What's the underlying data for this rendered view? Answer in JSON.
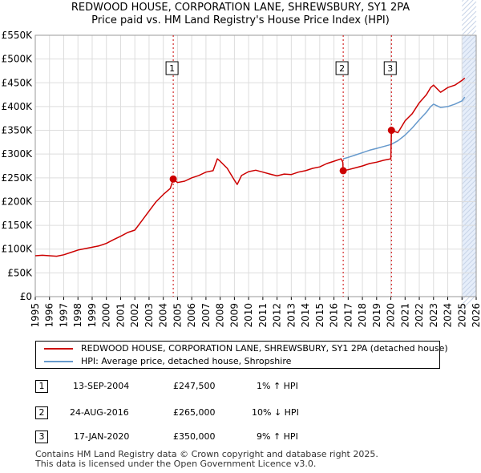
{
  "title_line1": "REDWOOD HOUSE, CORPORATION LANE, SHREWSBURY, SY1 2PA",
  "title_line2": "Price paid vs. HM Land Registry's House Price Index (HPI)",
  "colors": {
    "property": "#cc0000",
    "hpi": "#6699cc",
    "grid": "#dddddd",
    "band": "#e6eefa",
    "marker_line": "#cc0000"
  },
  "chart_data": {
    "type": "line",
    "title": "Price paid vs. HM Land Registry's House Price Index (HPI)",
    "xlim": [
      1995,
      2026
    ],
    "ylim": [
      0,
      550000
    ],
    "x_ticks": [
      1995,
      1996,
      1997,
      1998,
      1999,
      2000,
      2001,
      2002,
      2003,
      2004,
      2005,
      2006,
      2007,
      2008,
      2009,
      2010,
      2011,
      2012,
      2013,
      2014,
      2015,
      2016,
      2017,
      2018,
      2019,
      2020,
      2021,
      2022,
      2023,
      2024,
      2025,
      2026
    ],
    "y_ticks": [
      {
        "value": 0,
        "label": "£0"
      },
      {
        "value": 50000,
        "label": "£50K"
      },
      {
        "value": 100000,
        "label": "£100K"
      },
      {
        "value": 150000,
        "label": "£150K"
      },
      {
        "value": 200000,
        "label": "£200K"
      },
      {
        "value": 250000,
        "label": "£250K"
      },
      {
        "value": 300000,
        "label": "£300K"
      },
      {
        "value": 350000,
        "label": "£350K"
      },
      {
        "value": 400000,
        "label": "£400K"
      },
      {
        "value": 450000,
        "label": "£450K"
      },
      {
        "value": 500000,
        "label": "£500K"
      },
      {
        "value": 550000,
        "label": "£550K"
      }
    ],
    "future_band_start": 2025.0,
    "series": [
      {
        "name": "REDWOOD HOUSE, CORPORATION LANE, SHREWSBURY, SY1 2PA (detached house)",
        "color": "#cc0000",
        "points": [
          [
            1995.0,
            86000
          ],
          [
            1995.5,
            87000
          ],
          [
            1996.0,
            86000
          ],
          [
            1996.5,
            85000
          ],
          [
            1997.0,
            88000
          ],
          [
            1997.5,
            93000
          ],
          [
            1998.0,
            98000
          ],
          [
            1998.5,
            101000
          ],
          [
            1999.0,
            104000
          ],
          [
            1999.5,
            107000
          ],
          [
            2000.0,
            112000
          ],
          [
            2000.5,
            120000
          ],
          [
            2001.0,
            127000
          ],
          [
            2001.5,
            135000
          ],
          [
            2002.0,
            140000
          ],
          [
            2002.5,
            160000
          ],
          [
            2003.0,
            180000
          ],
          [
            2003.5,
            200000
          ],
          [
            2004.0,
            215000
          ],
          [
            2004.5,
            228000
          ],
          [
            2004.7,
            247500
          ],
          [
            2005.0,
            240000
          ],
          [
            2005.5,
            243000
          ],
          [
            2006.0,
            250000
          ],
          [
            2006.5,
            255000
          ],
          [
            2007.0,
            262000
          ],
          [
            2007.5,
            265000
          ],
          [
            2007.8,
            290000
          ],
          [
            2008.0,
            285000
          ],
          [
            2008.5,
            270000
          ],
          [
            2009.0,
            245000
          ],
          [
            2009.2,
            236000
          ],
          [
            2009.5,
            255000
          ],
          [
            2010.0,
            263000
          ],
          [
            2010.5,
            266000
          ],
          [
            2011.0,
            262000
          ],
          [
            2011.5,
            258000
          ],
          [
            2012.0,
            254000
          ],
          [
            2012.5,
            258000
          ],
          [
            2013.0,
            257000
          ],
          [
            2013.5,
            262000
          ],
          [
            2014.0,
            265000
          ],
          [
            2014.5,
            270000
          ],
          [
            2015.0,
            273000
          ],
          [
            2015.5,
            280000
          ],
          [
            2016.0,
            285000
          ],
          [
            2016.5,
            290000
          ],
          [
            2016.62,
            283000
          ],
          [
            2016.65,
            265000
          ],
          [
            2017.0,
            267000
          ],
          [
            2017.5,
            271000
          ],
          [
            2018.0,
            275000
          ],
          [
            2018.5,
            280000
          ],
          [
            2019.0,
            283000
          ],
          [
            2019.5,
            287000
          ],
          [
            2020.0,
            290000
          ],
          [
            2020.04,
            350000
          ],
          [
            2020.5,
            345000
          ],
          [
            2021.0,
            370000
          ],
          [
            2021.5,
            385000
          ],
          [
            2022.0,
            408000
          ],
          [
            2022.5,
            425000
          ],
          [
            2022.8,
            440000
          ],
          [
            2023.0,
            445000
          ],
          [
            2023.5,
            430000
          ],
          [
            2024.0,
            440000
          ],
          [
            2024.5,
            445000
          ],
          [
            2025.0,
            455000
          ],
          [
            2025.2,
            460000
          ]
        ]
      },
      {
        "name": "HPI: Average price, detached house, Shropshire",
        "color": "#6699cc",
        "points": [
          [
            2016.65,
            290000
          ],
          [
            2017.0,
            293000
          ],
          [
            2017.5,
            298000
          ],
          [
            2018.0,
            303000
          ],
          [
            2018.5,
            308000
          ],
          [
            2019.0,
            312000
          ],
          [
            2019.5,
            316000
          ],
          [
            2020.0,
            320000
          ],
          [
            2020.5,
            328000
          ],
          [
            2021.0,
            340000
          ],
          [
            2021.5,
            355000
          ],
          [
            2022.0,
            372000
          ],
          [
            2022.5,
            388000
          ],
          [
            2022.8,
            400000
          ],
          [
            2023.0,
            405000
          ],
          [
            2023.5,
            398000
          ],
          [
            2024.0,
            400000
          ],
          [
            2024.5,
            405000
          ],
          [
            2025.0,
            412000
          ],
          [
            2025.2,
            420000
          ]
        ]
      }
    ],
    "sales": [
      {
        "label": "1",
        "x": 2004.7,
        "price": 247500
      },
      {
        "label": "2",
        "x": 2016.65,
        "price": 265000
      },
      {
        "label": "3",
        "x": 2020.04,
        "price": 350000
      }
    ]
  },
  "legend": {
    "property_label": "REDWOOD HOUSE, CORPORATION LANE, SHREWSBURY, SY1 2PA (detached house)",
    "hpi_label": "HPI: Average price, detached house, Shropshire"
  },
  "transactions": [
    {
      "num": "1",
      "date": "13-SEP-2004",
      "price": "£247,500",
      "change": "1% ↑ HPI"
    },
    {
      "num": "2",
      "date": "24-AUG-2016",
      "price": "£265,000",
      "change": "10% ↓ HPI"
    },
    {
      "num": "3",
      "date": "17-JAN-2020",
      "price": "£350,000",
      "change": "9% ↑ HPI"
    }
  ],
  "footer": {
    "line1": "Contains HM Land Registry data © Crown copyright and database right 2025.",
    "line2": "This data is licensed under the Open Government Licence v3.0."
  }
}
